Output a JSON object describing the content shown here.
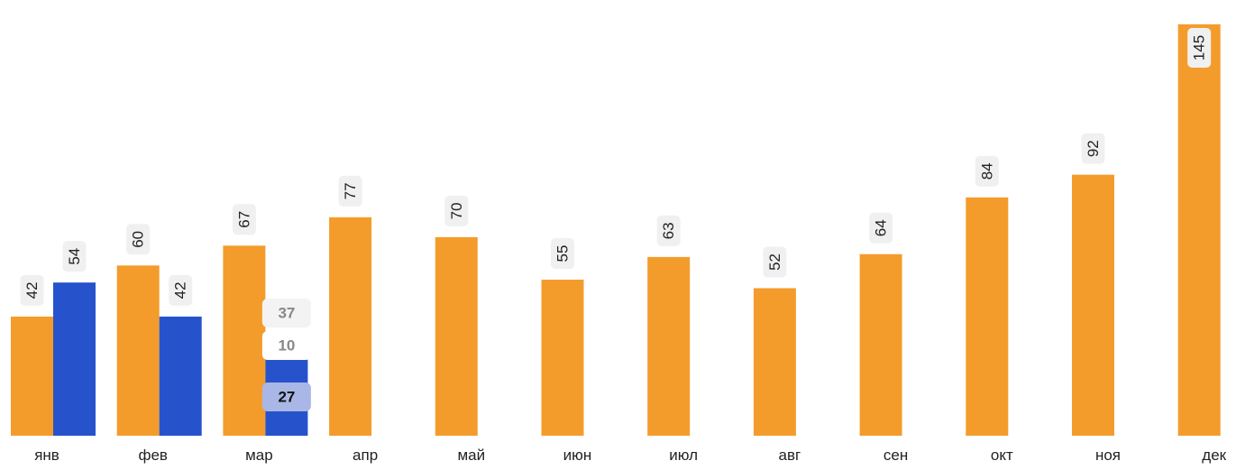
{
  "chart_data": {
    "type": "bar",
    "categories": [
      "янв",
      "фев",
      "мар",
      "апр",
      "май",
      "июн",
      "июл",
      "авг",
      "сен",
      "окт",
      "ноя",
      "дек"
    ],
    "series": [
      {
        "color": "#f39c2c",
        "values": [
          42,
          60,
          67,
          77,
          70,
          55,
          63,
          52,
          64,
          84,
          92,
          145
        ],
        "labels": [
          "42",
          "60",
          "67",
          "77",
          "70",
          "55",
          "63",
          "52",
          "64",
          "84",
          "92",
          "145"
        ]
      },
      {
        "color": "#2653cc",
        "values": [
          54,
          42,
          27,
          null,
          null,
          null,
          null,
          null,
          null,
          null,
          null,
          null
        ],
        "labels": [
          "54",
          "42",
          null,
          null,
          null,
          null,
          null,
          null,
          null,
          null,
          null,
          null
        ]
      }
    ],
    "annotations": [
      {
        "category": "мар",
        "text": "37",
        "style": "faint"
      },
      {
        "category": "мар",
        "text": "10",
        "style": "plain"
      },
      {
        "category": "мар",
        "text": "27",
        "style": "inside"
      }
    ],
    "ylim": [
      0,
      145
    ],
    "grid": false,
    "legend": "none"
  }
}
